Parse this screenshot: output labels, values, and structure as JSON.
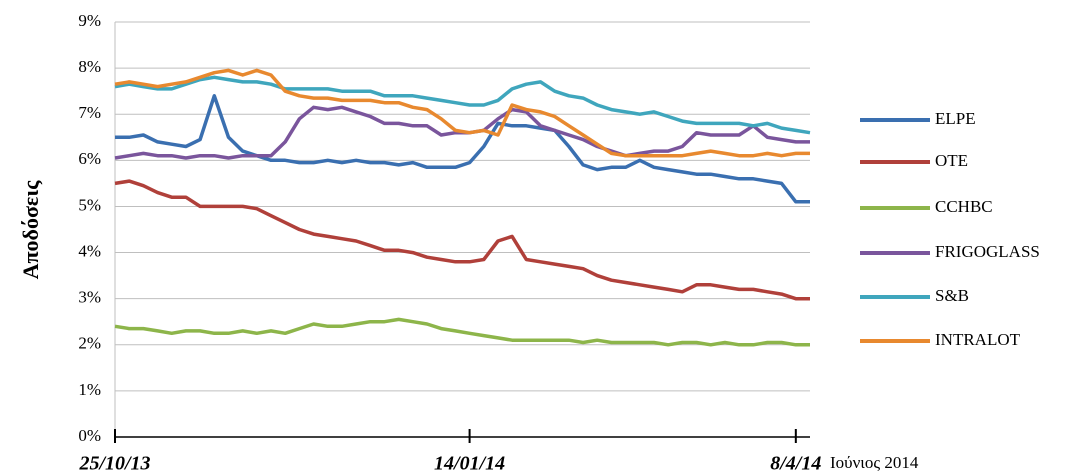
{
  "chart_data": {
    "type": "line",
    "y_label": "Αποδόσεις",
    "annotation": "Ιούνιος 2014",
    "categories": [
      "25/10/13",
      null,
      null,
      null,
      null,
      null,
      null,
      null,
      null,
      null,
      null,
      null,
      null,
      null,
      null,
      null,
      null,
      null,
      null,
      null,
      null,
      null,
      null,
      null,
      null,
      "14/01/14",
      null,
      null,
      null,
      null,
      null,
      null,
      null,
      null,
      null,
      null,
      null,
      null,
      null,
      null,
      null,
      null,
      null,
      null,
      null,
      null,
      null,
      null,
      "8/4/14",
      null
    ],
    "ylim": [
      0,
      9
    ],
    "yticks": [
      {
        "value": 0,
        "label": "0%"
      },
      {
        "value": 1,
        "label": "1%"
      },
      {
        "value": 2,
        "label": "2%"
      },
      {
        "value": 3,
        "label": "3%"
      },
      {
        "value": 4,
        "label": "4%"
      },
      {
        "value": 5,
        "label": "5%"
      },
      {
        "value": 6,
        "label": "6%"
      },
      {
        "value": 7,
        "label": "7%"
      },
      {
        "value": 8,
        "label": "8%"
      },
      {
        "value": 9,
        "label": "9%"
      }
    ],
    "grid": true,
    "legend": "right",
    "series": [
      {
        "name": "ELPE",
        "color": "#3a6fb0",
        "values": [
          6.5,
          6.5,
          6.55,
          6.4,
          6.35,
          6.3,
          6.45,
          7.4,
          6.5,
          6.2,
          6.1,
          6.0,
          6.0,
          5.95,
          5.95,
          6.0,
          5.95,
          6.0,
          5.95,
          5.95,
          5.9,
          5.95,
          5.85,
          5.85,
          5.85,
          5.95,
          6.3,
          6.8,
          6.75,
          6.75,
          6.7,
          6.65,
          6.3,
          5.9,
          5.8,
          5.85,
          5.85,
          6.0,
          5.85,
          5.8,
          5.75,
          5.7,
          5.7,
          5.65,
          5.6,
          5.6,
          5.55,
          5.5,
          5.1,
          5.1
        ]
      },
      {
        "name": "OTE",
        "color": "#b0403a",
        "values": [
          5.5,
          5.55,
          5.45,
          5.3,
          5.2,
          5.2,
          5.0,
          5.0,
          5.0,
          5.0,
          4.95,
          4.8,
          4.65,
          4.5,
          4.4,
          4.35,
          4.3,
          4.25,
          4.15,
          4.05,
          4.05,
          4.0,
          3.9,
          3.85,
          3.8,
          3.8,
          3.85,
          4.25,
          4.35,
          3.85,
          3.8,
          3.75,
          3.7,
          3.65,
          3.5,
          3.4,
          3.35,
          3.3,
          3.25,
          3.2,
          3.15,
          3.3,
          3.3,
          3.25,
          3.2,
          3.2,
          3.15,
          3.1,
          3.0,
          3.0
        ]
      },
      {
        "name": "CCHBC",
        "color": "#8db54a",
        "values": [
          2.4,
          2.35,
          2.35,
          2.3,
          2.25,
          2.3,
          2.3,
          2.25,
          2.25,
          2.3,
          2.25,
          2.3,
          2.25,
          2.35,
          2.45,
          2.4,
          2.4,
          2.45,
          2.5,
          2.5,
          2.55,
          2.5,
          2.45,
          2.35,
          2.3,
          2.25,
          2.2,
          2.15,
          2.1,
          2.1,
          2.1,
          2.1,
          2.1,
          2.05,
          2.1,
          2.05,
          2.05,
          2.05,
          2.05,
          2.0,
          2.05,
          2.05,
          2.0,
          2.05,
          2.0,
          2.0,
          2.05,
          2.05,
          2.0,
          2.0
        ]
      },
      {
        "name": "FRIGOGLASS",
        "color": "#7a559c",
        "values": [
          6.05,
          6.1,
          6.15,
          6.1,
          6.1,
          6.05,
          6.1,
          6.1,
          6.05,
          6.1,
          6.1,
          6.1,
          6.4,
          6.9,
          7.15,
          7.1,
          7.15,
          7.05,
          6.95,
          6.8,
          6.8,
          6.75,
          6.75,
          6.55,
          6.6,
          6.6,
          6.65,
          6.9,
          7.1,
          7.05,
          6.75,
          6.65,
          6.55,
          6.45,
          6.3,
          6.2,
          6.1,
          6.15,
          6.2,
          6.2,
          6.3,
          6.6,
          6.55,
          6.55,
          6.55,
          6.75,
          6.5,
          6.45,
          6.4,
          6.4
        ]
      },
      {
        "name": "S&B",
        "color": "#3fa6bd",
        "values": [
          7.6,
          7.65,
          7.6,
          7.55,
          7.55,
          7.65,
          7.75,
          7.8,
          7.75,
          7.7,
          7.7,
          7.65,
          7.55,
          7.55,
          7.55,
          7.55,
          7.5,
          7.5,
          7.5,
          7.4,
          7.4,
          7.4,
          7.35,
          7.3,
          7.25,
          7.2,
          7.2,
          7.3,
          7.55,
          7.65,
          7.7,
          7.5,
          7.4,
          7.35,
          7.2,
          7.1,
          7.05,
          7.0,
          7.05,
          6.95,
          6.85,
          6.8,
          6.8,
          6.8,
          6.8,
          6.75,
          6.8,
          6.7,
          6.65,
          6.6
        ]
      },
      {
        "name": "INTRALOT",
        "color": "#e8892f",
        "values": [
          7.65,
          7.7,
          7.65,
          7.6,
          7.65,
          7.7,
          7.8,
          7.9,
          7.95,
          7.85,
          7.95,
          7.85,
          7.5,
          7.4,
          7.35,
          7.35,
          7.3,
          7.3,
          7.3,
          7.25,
          7.25,
          7.15,
          7.1,
          6.9,
          6.65,
          6.6,
          6.65,
          6.55,
          7.2,
          7.1,
          7.05,
          6.95,
          6.75,
          6.55,
          6.35,
          6.15,
          6.1,
          6.1,
          6.1,
          6.1,
          6.1,
          6.15,
          6.2,
          6.15,
          6.1,
          6.1,
          6.15,
          6.1,
          6.15,
          6.15
        ]
      }
    ]
  }
}
